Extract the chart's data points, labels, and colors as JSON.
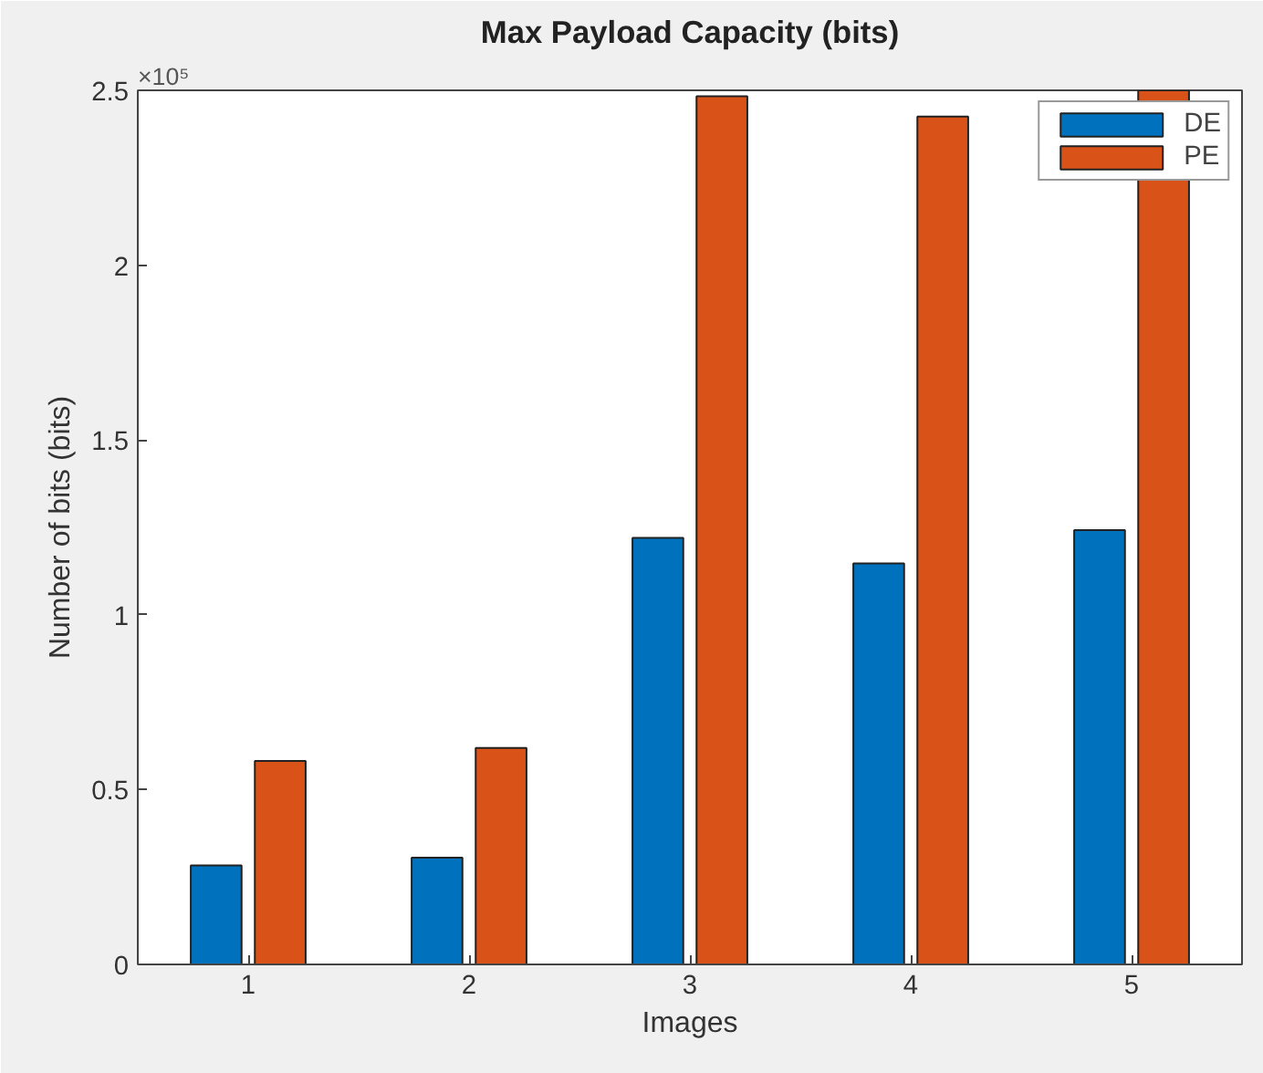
{
  "chart_data": {
    "type": "bar",
    "title": "Max Payload Capacity (bits)",
    "xlabel": "Images",
    "ylabel": "Number of bits (bits)",
    "categories": [
      "1",
      "2",
      "3",
      "4",
      "5"
    ],
    "series": [
      {
        "name": "DE",
        "color": "#0072bd",
        "values": [
          0.283,
          0.305,
          1.22,
          1.147,
          1.242
        ]
      },
      {
        "name": "PE",
        "color": "#d95319",
        "values": [
          0.582,
          0.619,
          2.483,
          2.425,
          2.5
        ]
      }
    ],
    "ylim": [
      0,
      2.5
    ],
    "yticks": [
      0,
      0.5,
      1,
      1.5,
      2,
      2.5
    ],
    "annotations": [
      "×10⁵"
    ],
    "grid": false,
    "legend": "top right"
  }
}
